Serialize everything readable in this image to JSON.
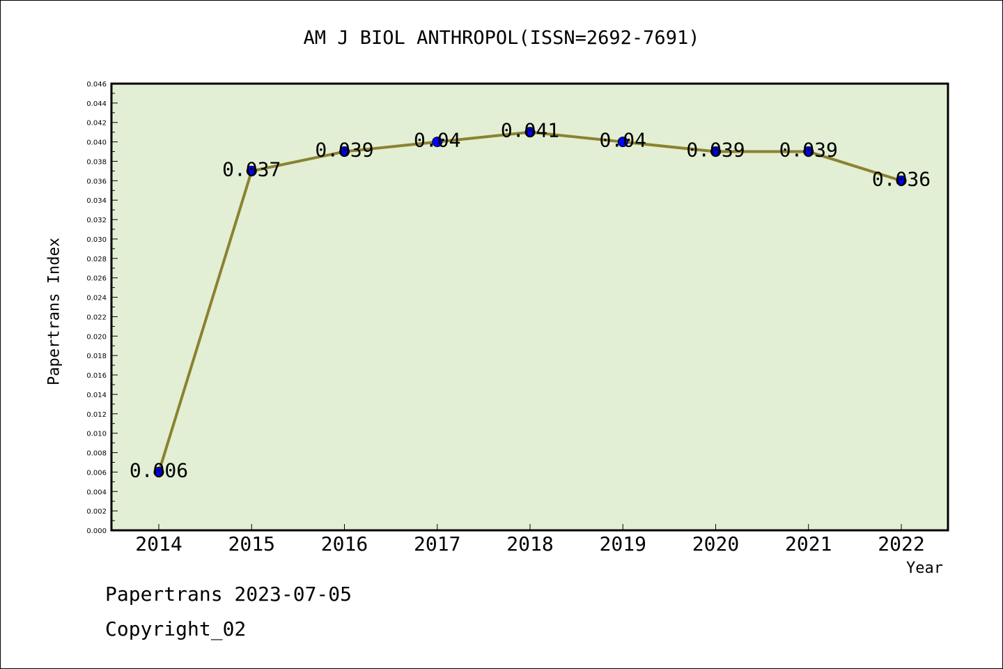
{
  "chart_data": {
    "type": "line",
    "title": "AM J BIOL ANTHROPOL(ISSN=2692-7691)",
    "xlabel": "Year",
    "ylabel": "Papertrans Index",
    "categories": [
      "2014",
      "2015",
      "2016",
      "2017",
      "2018",
      "2019",
      "2020",
      "2021",
      "2022"
    ],
    "values": [
      0.006,
      0.037,
      0.039,
      0.04,
      0.041,
      0.04,
      0.039,
      0.039,
      0.036
    ],
    "data_labels": [
      "0.006",
      "0.037",
      "0.039",
      "0.04",
      "0.041",
      "0.04",
      "0.039",
      "0.039",
      "0.036"
    ],
    "ylim": [
      0,
      0.046
    ],
    "y_ticks": [
      "0.000",
      "0.002",
      "0.004",
      "0.006",
      "0.008",
      "0.010",
      "0.012",
      "0.014",
      "0.016",
      "0.018",
      "0.020",
      "0.022",
      "0.024",
      "0.026",
      "0.028",
      "0.030",
      "0.032",
      "0.034",
      "0.036",
      "0.038",
      "0.040",
      "0.042",
      "0.044",
      "0.046"
    ],
    "grid": false,
    "legend": "none",
    "colors": {
      "plot_background": "#e2efd4",
      "line": "#8b8230",
      "marker": "#0000ff"
    }
  },
  "footer": {
    "line1": "Papertrans 2023-07-05",
    "line2": "Copyright_02"
  }
}
